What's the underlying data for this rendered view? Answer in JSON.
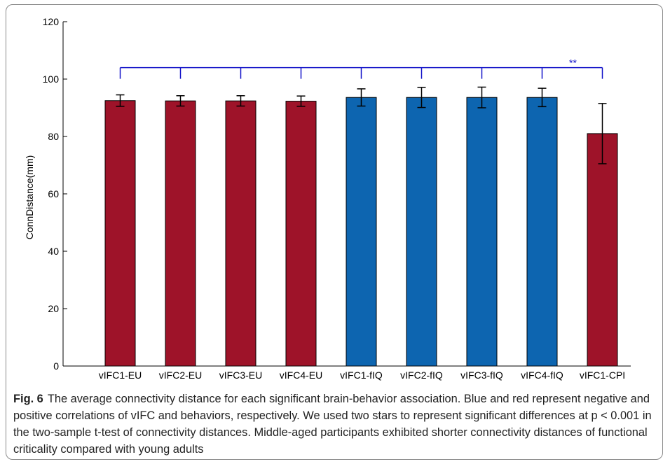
{
  "chart_data": {
    "type": "bar",
    "title": "",
    "xlabel": "",
    "ylabel": "ConnDistance(mm)",
    "ylim": [
      0,
      120
    ],
    "yticks": [
      0,
      20,
      40,
      60,
      80,
      100,
      120
    ],
    "grid": false,
    "categories": [
      "vIFC1-EU",
      "vIFC2-EU",
      "vIFC3-EU",
      "vIFC4-EU",
      "vIFC1-fIQ",
      "vIFC2-fIQ",
      "vIFC3-fIQ",
      "vIFC4-fIQ",
      "vIFC1-CPI"
    ],
    "values": [
      92.5,
      92.4,
      92.4,
      92.3,
      93.6,
      93.6,
      93.6,
      93.6,
      81.0
    ],
    "errors": [
      2.0,
      1.8,
      1.8,
      1.8,
      3.0,
      3.5,
      3.6,
      3.2,
      10.5
    ],
    "bar_colors": [
      "#9e1329",
      "#9e1329",
      "#9e1329",
      "#9e1329",
      "#0d65b0",
      "#0d65b0",
      "#0d65b0",
      "#0d65b0",
      "#9e1329"
    ],
    "significance": {
      "bracket_y": 104,
      "label": "**",
      "color": "#1010c8"
    }
  },
  "caption": {
    "label": "Fig. 6",
    "text": "The average connectivity distance for each significant brain-behavior association. Blue and red represent negative and positive correlations of vIFC and behaviors, respectively. We used two stars to represent significant differences at p < 0.001 in the two-sample t-test of connectivity distances. Middle-aged participants exhibited shorter connectivity distances of functional criticality compared with young adults"
  }
}
